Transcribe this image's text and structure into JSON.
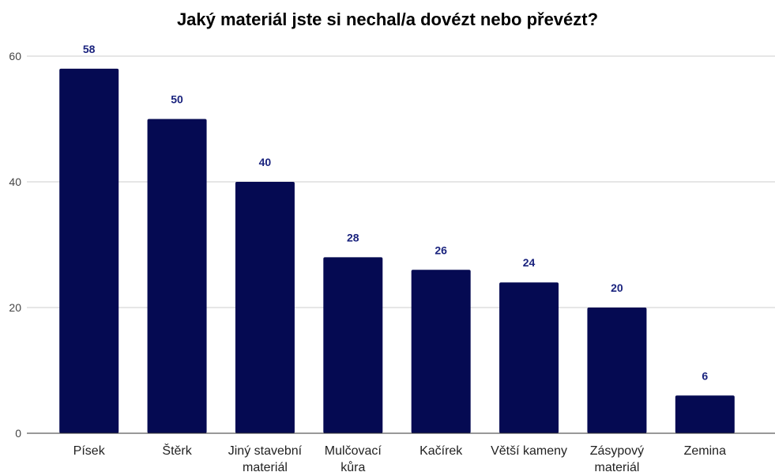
{
  "chart_data": {
    "type": "bar",
    "title": "Jaký materiál jste si nechal/a dovézt nebo převézt?",
    "xlabel": "",
    "ylabel": "",
    "categories": [
      [
        "Písek"
      ],
      [
        "Štěrk"
      ],
      [
        "Jiný stavební",
        "materiál"
      ],
      [
        "Mulčovací",
        "kůra"
      ],
      [
        "Kačírek"
      ],
      [
        "Větší kameny"
      ],
      [
        "Zásypový",
        "materiál"
      ],
      [
        "Zemina"
      ]
    ],
    "values": [
      58,
      50,
      40,
      28,
      26,
      24,
      20,
      6
    ],
    "ylim": [
      0,
      60
    ],
    "yticks": [
      0,
      20,
      40,
      60
    ],
    "grid": true,
    "legend": "none",
    "bar_color": "#050a52",
    "label_color": "#1a237e"
  }
}
